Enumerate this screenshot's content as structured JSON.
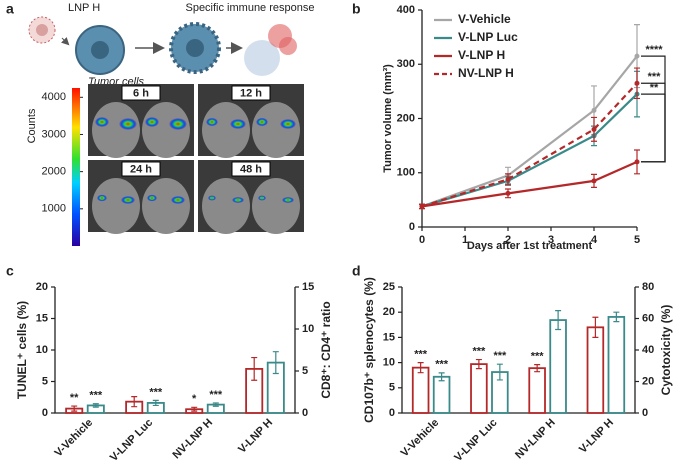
{
  "panel_labels": [
    "a",
    "b",
    "c",
    "d"
  ],
  "panel_a": {
    "schematic": {
      "particle": "LNP H",
      "cell": "Tumor cells",
      "response": "Specific immune response"
    },
    "colorbar": {
      "label": "Counts",
      "lim": [
        0,
        4250
      ],
      "ticks": [
        1000,
        2000,
        3000,
        4000
      ]
    },
    "images": [
      "6 h",
      "12 h",
      "24 h",
      "48 h"
    ]
  },
  "chart_data": [
    {
      "type": "line",
      "xlabel": "Days after 1st treatment",
      "ylabel": "Tumor volume (mm³)",
      "x": [
        0,
        2,
        4,
        5
      ],
      "xlim": [
        0,
        5
      ],
      "xticks": [
        0,
        1,
        2,
        3,
        4,
        5
      ],
      "ylim": [
        0,
        400
      ],
      "yticks": [
        0,
        100,
        200,
        300,
        400
      ],
      "legend": "top-left",
      "series": [
        {
          "name": "V-Vehicle",
          "color": "#a6a6a6",
          "dashed": false,
          "values": [
            38,
            95,
            215,
            315
          ],
          "errors": [
            4,
            15,
            45,
            58
          ]
        },
        {
          "name": "V-LNP Luc",
          "color": "#3a8a8a",
          "dashed": false,
          "values": [
            38,
            85,
            168,
            245
          ],
          "errors": [
            4,
            8,
            18,
            42
          ]
        },
        {
          "name": "V-LNP H",
          "color": "#b5282a",
          "dashed": false,
          "values": [
            38,
            62,
            85,
            120
          ],
          "errors": [
            4,
            8,
            12,
            22
          ]
        },
        {
          "name": "NV-LNP H",
          "color": "#b5282a",
          "dashed": true,
          "values": [
            38,
            88,
            180,
            265
          ],
          "errors": [
            4,
            10,
            22,
            28
          ]
        }
      ],
      "annotations": [
        "****",
        "***",
        "**"
      ]
    },
    {
      "type": "bar",
      "categories": [
        "V-Vehicle",
        "V-LNP Luc",
        "NV-LNP H",
        "V-LNP H"
      ],
      "ylabel": "TUNEL⁺ cells (%)",
      "y2label": "CD8⁺: CD4⁺ ratio",
      "ylim": [
        0,
        20
      ],
      "yticks": [
        0,
        5,
        10,
        15,
        20
      ],
      "y2lim": [
        0,
        15
      ],
      "y2ticks": [
        0,
        5,
        10,
        15
      ],
      "series": [
        {
          "color": "#b5282a",
          "values": [
            0.7,
            1.8,
            0.6,
            7.0
          ],
          "errors": [
            0.4,
            0.8,
            0.3,
            1.8
          ],
          "significance": [
            "**",
            null,
            "*",
            null
          ]
        },
        {
          "color": "#3a8a8a",
          "axis": "y2",
          "values": [
            0.9,
            1.2,
            1.0,
            6.0
          ],
          "errors": [
            0.2,
            0.3,
            0.2,
            1.3
          ],
          "significance": [
            "***",
            "***",
            "***",
            null
          ]
        }
      ]
    },
    {
      "type": "bar",
      "categories": [
        "V-Vehicle",
        "V-LNP Luc",
        "NV-LNP H",
        "V-LNP H"
      ],
      "ylabel": "CD107b⁺ splenocytes (%)",
      "y2label": "Cytotoxicity (%)",
      "ylim": [
        0,
        25
      ],
      "yticks": [
        0,
        5,
        10,
        15,
        20,
        25
      ],
      "y2lim": [
        0,
        80
      ],
      "y2ticks": [
        0,
        20,
        40,
        60,
        80
      ],
      "series": [
        {
          "color": "#b5282a",
          "values": [
            9.0,
            9.7,
            8.9,
            17.0
          ],
          "errors": [
            1.0,
            0.9,
            0.7,
            2.0
          ],
          "significance": [
            "***",
            "***",
            "***",
            null
          ]
        },
        {
          "color": "#3a8a8a",
          "axis": "y2",
          "values": [
            23,
            26,
            59,
            61
          ],
          "errors": [
            2.5,
            5,
            6,
            3
          ],
          "significance": [
            "***",
            "***",
            null,
            null
          ]
        }
      ]
    }
  ]
}
